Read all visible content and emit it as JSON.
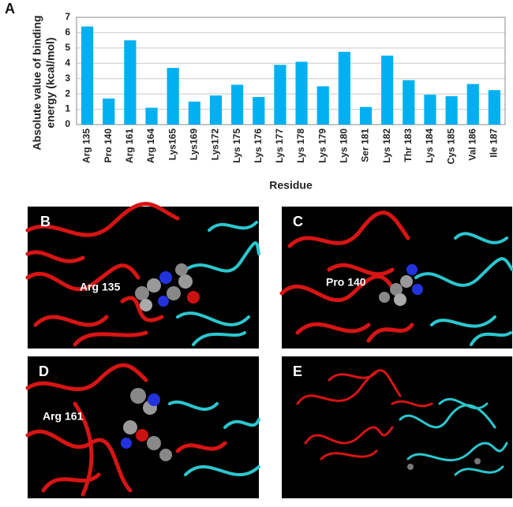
{
  "chart_data": {
    "type": "bar",
    "panel_label": "A",
    "x_label": "Residue",
    "y_label": [
      "Absolute value of binding",
      "energy (kcal/mol)"
    ],
    "categories": [
      "Arg 135",
      "Pro 140",
      "Arg 161",
      "Arg 164",
      "Lys165",
      "Lys169",
      "Lys172",
      "Lys 175",
      "Lys 176",
      "Lys 177",
      "Lys 178",
      "Lys 179",
      "Lys 180",
      "Ser 181",
      "Lys 182",
      "Thr 183",
      "Lys 184",
      "Cys 185",
      "Val 186",
      "Ile 187"
    ],
    "values": [
      6.4,
      1.7,
      5.5,
      1.1,
      3.7,
      1.5,
      1.9,
      2.6,
      1.8,
      3.9,
      4.1,
      2.5,
      4.75,
      1.15,
      4.5,
      2.9,
      1.95,
      1.85,
      2.65,
      2.25
    ],
    "color": "#00b0f0",
    "ylim": [
      0,
      7
    ],
    "yticks": [
      0,
      1,
      2,
      3,
      4,
      5,
      6,
      7
    ],
    "grid": true
  },
  "panels": [
    {
      "label": "B",
      "annotation": "Arg 135"
    },
    {
      "label": "C",
      "annotation": "Pro 140"
    },
    {
      "label": "D",
      "annotation": "Arg 161"
    },
    {
      "label": "E"
    }
  ]
}
